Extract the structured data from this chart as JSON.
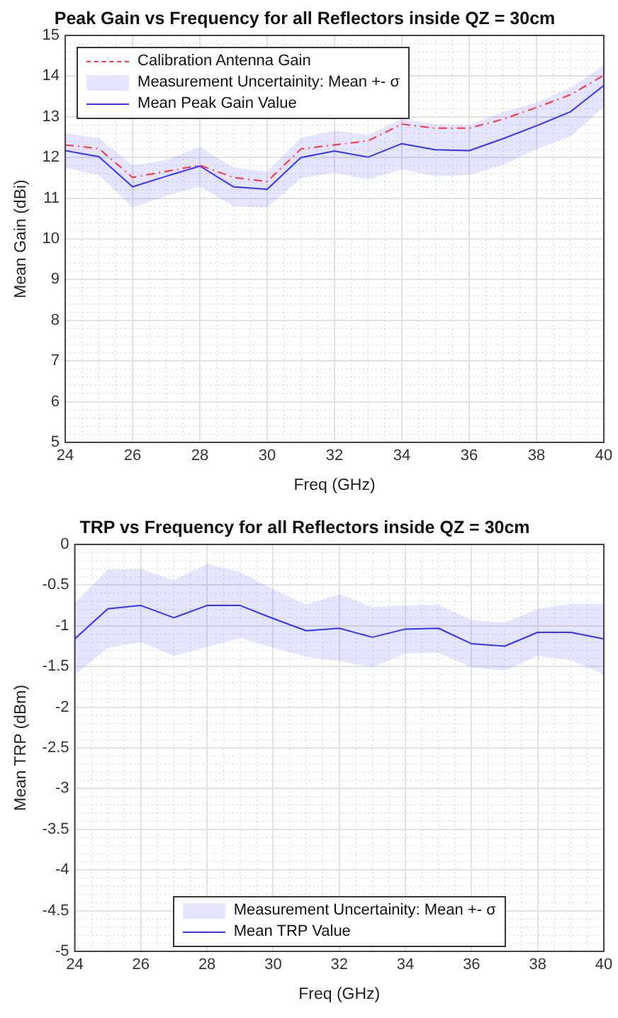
{
  "chart_data": [
    {
      "type": "line",
      "title": "Peak Gain vs Frequency for all Reflectors inside QZ = 30cm",
      "xlabel": "Freq (GHz)",
      "ylabel": "Mean Gain (dBi)",
      "annotations": [
        "Measurement Uncertainity: Mean +- σ"
      ],
      "x": [
        24,
        25,
        26,
        27,
        28,
        29,
        30,
        31,
        32,
        33,
        34,
        35,
        36,
        37,
        38,
        39,
        40
      ],
      "xlim": [
        24,
        40
      ],
      "xticks": [
        24,
        26,
        28,
        30,
        32,
        34,
        36,
        38,
        40
      ],
      "ylim": [
        5,
        15
      ],
      "yticks": [
        5,
        6,
        7,
        8,
        9,
        10,
        11,
        12,
        13,
        14,
        15
      ],
      "grid": true,
      "legend": "top left",
      "series": [
        {
          "name": "Calibration Antenna Gain",
          "type": "line",
          "line_style": "dashed",
          "color": "#ff3333",
          "values": [
            12.31,
            12.22,
            11.51,
            11.66,
            11.81,
            11.51,
            11.41,
            12.21,
            12.31,
            12.41,
            12.82,
            12.72,
            12.72,
            12.94,
            13.23,
            13.54,
            14.02
          ]
        },
        {
          "name": "Mean Peak Gain Value",
          "type": "line",
          "line_style": "solid",
          "color": "#3333ff",
          "values": [
            12.17,
            12.02,
            11.28,
            11.54,
            11.79,
            11.28,
            11.22,
            12.0,
            12.16,
            12.01,
            12.34,
            12.19,
            12.17,
            12.46,
            12.78,
            13.12,
            13.77
          ],
          "lower": [
            11.75,
            11.57,
            10.77,
            11.06,
            11.29,
            10.8,
            10.77,
            11.49,
            11.63,
            11.46,
            11.71,
            11.54,
            11.57,
            11.81,
            12.21,
            12.51,
            13.25
          ],
          "upper": [
            12.6,
            12.48,
            11.81,
            11.94,
            12.26,
            11.75,
            11.66,
            12.48,
            12.66,
            12.55,
            12.95,
            12.82,
            12.8,
            13.12,
            13.35,
            13.71,
            14.26
          ]
        }
      ]
    },
    {
      "type": "line",
      "title": "TRP vs Frequency for all Reflectors inside QZ = 30cm",
      "xlabel": "Freq (GHz)",
      "ylabel": "Mean TRP (dBm)",
      "annotations": [
        "Measurement Uncertainity: Mean +- σ"
      ],
      "x": [
        24,
        25,
        26,
        27,
        28,
        29,
        30,
        31,
        32,
        33,
        34,
        35,
        36,
        37,
        38,
        39,
        40
      ],
      "xlim": [
        24,
        40
      ],
      "xticks": [
        24,
        26,
        28,
        30,
        32,
        34,
        36,
        38,
        40
      ],
      "ylim": [
        -5,
        0
      ],
      "yticks": [
        -5,
        -4.5,
        -4,
        -3.5,
        -3,
        -2.5,
        -2,
        -1.5,
        -1,
        -0.5,
        0
      ],
      "grid": true,
      "legend": "bottom",
      "series": [
        {
          "name": "Mean TRP Value",
          "type": "line",
          "line_style": "solid",
          "color": "#3333ff",
          "values": [
            -1.16,
            -0.79,
            -0.75,
            -0.9,
            -0.75,
            -0.75,
            -0.91,
            -1.06,
            -1.03,
            -1.14,
            -1.04,
            -1.03,
            -1.22,
            -1.25,
            -1.08,
            -1.08,
            -1.16
          ],
          "lower": [
            -1.6,
            -1.27,
            -1.2,
            -1.37,
            -1.26,
            -1.15,
            -1.27,
            -1.38,
            -1.43,
            -1.51,
            -1.34,
            -1.33,
            -1.51,
            -1.55,
            -1.37,
            -1.42,
            -1.6
          ],
          "upper": [
            -0.72,
            -0.31,
            -0.3,
            -0.44,
            -0.24,
            -0.34,
            -0.55,
            -0.74,
            -0.61,
            -0.77,
            -0.75,
            -0.74,
            -0.93,
            -0.96,
            -0.79,
            -0.73,
            -0.73
          ]
        }
      ]
    }
  ]
}
